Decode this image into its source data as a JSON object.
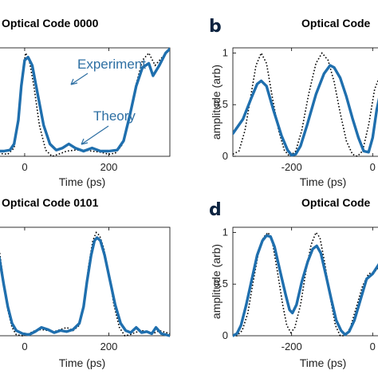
{
  "panel_titles": {
    "a": "Optical Code 0000",
    "b": "Optical Code",
    "c": "Optical Code 0101",
    "d": "Optical Code"
  },
  "panel_letters": {
    "b": "b",
    "d": "d"
  },
  "annotations": {
    "experiment": "Experiment",
    "theory": "Theory"
  },
  "chart_data": [
    {
      "type": "line",
      "title": "Optical Code 0000",
      "xlabel": "Time (ps)",
      "ylabel": "",
      "xlim": [
        -70,
        345
      ],
      "ylim": [
        0,
        1.05
      ],
      "xticks": [
        0,
        200
      ],
      "xtick_labels": [
        "0",
        "200"
      ],
      "yticks": [],
      "series": [
        {
          "name": "Experiment",
          "style": "solid",
          "color": "#1f6fae",
          "points": [
            [
              -70,
              0.05
            ],
            [
              -50,
              0.05
            ],
            [
              -35,
              0.06
            ],
            [
              -25,
              0.12
            ],
            [
              -15,
              0.35
            ],
            [
              -8,
              0.68
            ],
            [
              0,
              0.93
            ],
            [
              8,
              0.96
            ],
            [
              18,
              0.88
            ],
            [
              30,
              0.62
            ],
            [
              45,
              0.3
            ],
            [
              60,
              0.12
            ],
            [
              75,
              0.06
            ],
            [
              90,
              0.08
            ],
            [
              105,
              0.12
            ],
            [
              120,
              0.08
            ],
            [
              140,
              0.05
            ],
            [
              160,
              0.08
            ],
            [
              180,
              0.05
            ],
            [
              200,
              0.05
            ],
            [
              220,
              0.06
            ],
            [
              235,
              0.15
            ],
            [
              250,
              0.4
            ],
            [
              265,
              0.68
            ],
            [
              280,
              0.86
            ],
            [
              295,
              0.9
            ],
            [
              305,
              0.78
            ],
            [
              320,
              0.88
            ],
            [
              335,
              1.0
            ],
            [
              345,
              1.04
            ]
          ]
        },
        {
          "name": "Theory",
          "style": "dotted",
          "color": "#000000",
          "points": [
            [
              -70,
              0.03
            ],
            [
              -40,
              0.02
            ],
            [
              -25,
              0.08
            ],
            [
              -15,
              0.35
            ],
            [
              -5,
              0.8
            ],
            [
              2,
              1.0
            ],
            [
              10,
              0.95
            ],
            [
              22,
              0.68
            ],
            [
              35,
              0.3
            ],
            [
              50,
              0.06
            ],
            [
              65,
              0.0
            ],
            [
              80,
              0.02
            ],
            [
              100,
              0.05
            ],
            [
              120,
              0.06
            ],
            [
              140,
              0.06
            ],
            [
              160,
              0.05
            ],
            [
              180,
              0.04
            ],
            [
              200,
              0.02
            ],
            [
              215,
              0.03
            ],
            [
              230,
              0.1
            ],
            [
              248,
              0.35
            ],
            [
              265,
              0.7
            ],
            [
              280,
              0.93
            ],
            [
              295,
              1.0
            ],
            [
              310,
              0.88
            ],
            [
              325,
              0.95
            ],
            [
              340,
              1.02
            ]
          ]
        }
      ]
    },
    {
      "type": "line",
      "title": "Optical Code",
      "xlabel": "Time (ps)",
      "ylabel": "amplitude (arb)",
      "xlim": [
        -345,
        25
      ],
      "ylim": [
        0,
        1.05
      ],
      "xticks": [
        -200,
        0
      ],
      "xtick_labels": [
        "-200",
        "0"
      ],
      "yticks": [
        0,
        0.5,
        1
      ],
      "ytick_labels": [
        "0",
        "0.5",
        "1"
      ],
      "series": [
        {
          "name": "Experiment",
          "style": "solid",
          "color": "#1f6fae",
          "points": [
            [
              -345,
              0.22
            ],
            [
              -320,
              0.36
            ],
            [
              -300,
              0.56
            ],
            [
              -285,
              0.7
            ],
            [
              -275,
              0.73
            ],
            [
              -262,
              0.68
            ],
            [
              -245,
              0.45
            ],
            [
              -225,
              0.2
            ],
            [
              -210,
              0.06
            ],
            [
              -200,
              0.01
            ],
            [
              -190,
              0.02
            ],
            [
              -178,
              0.1
            ],
            [
              -162,
              0.3
            ],
            [
              -140,
              0.6
            ],
            [
              -120,
              0.8
            ],
            [
              -105,
              0.88
            ],
            [
              -95,
              0.86
            ],
            [
              -80,
              0.76
            ],
            [
              -65,
              0.58
            ],
            [
              -50,
              0.37
            ],
            [
              -35,
              0.18
            ],
            [
              -22,
              0.05
            ],
            [
              -10,
              0.04
            ],
            [
              0,
              0.18
            ],
            [
              10,
              0.45
            ],
            [
              25,
              0.72
            ]
          ]
        },
        {
          "name": "Theory",
          "style": "dotted",
          "color": "#000000",
          "points": [
            [
              -345,
              0.02
            ],
            [
              -330,
              0.05
            ],
            [
              -315,
              0.25
            ],
            [
              -300,
              0.6
            ],
            [
              -288,
              0.88
            ],
            [
              -275,
              1.0
            ],
            [
              -262,
              0.9
            ],
            [
              -248,
              0.58
            ],
            [
              -232,
              0.25
            ],
            [
              -218,
              0.06
            ],
            [
              -205,
              0.0
            ],
            [
              -190,
              0.05
            ],
            [
              -175,
              0.25
            ],
            [
              -158,
              0.6
            ],
            [
              -140,
              0.9
            ],
            [
              -125,
              1.0
            ],
            [
              -110,
              0.93
            ],
            [
              -95,
              0.72
            ],
            [
              -80,
              0.42
            ],
            [
              -65,
              0.15
            ],
            [
              -50,
              0.02
            ],
            [
              -38,
              0.0
            ],
            [
              -25,
              0.05
            ],
            [
              -10,
              0.3
            ],
            [
              5,
              0.65
            ],
            [
              25,
              0.85
            ]
          ]
        }
      ]
    },
    {
      "type": "line",
      "title": "Optical Code 0101",
      "xlabel": "Time (ps)",
      "ylabel": "",
      "xlim": [
        -70,
        345
      ],
      "ylim": [
        0,
        1.05
      ],
      "xticks": [
        0,
        200
      ],
      "xtick_labels": [
        "0",
        "200"
      ],
      "yticks": [],
      "series": [
        {
          "name": "Experiment",
          "style": "solid",
          "color": "#1f6fae",
          "points": [
            [
              -70,
              0.88
            ],
            [
              -60,
              0.75
            ],
            [
              -50,
              0.5
            ],
            [
              -40,
              0.28
            ],
            [
              -30,
              0.12
            ],
            [
              -20,
              0.05
            ],
            [
              -5,
              0.02
            ],
            [
              10,
              0.01
            ],
            [
              25,
              0.04
            ],
            [
              40,
              0.08
            ],
            [
              55,
              0.06
            ],
            [
              70,
              0.03
            ],
            [
              85,
              0.05
            ],
            [
              100,
              0.04
            ],
            [
              115,
              0.06
            ],
            [
              130,
              0.12
            ],
            [
              140,
              0.28
            ],
            [
              148,
              0.52
            ],
            [
              158,
              0.78
            ],
            [
              166,
              0.92
            ],
            [
              172,
              0.95
            ],
            [
              180,
              0.92
            ],
            [
              190,
              0.78
            ],
            [
              202,
              0.55
            ],
            [
              215,
              0.3
            ],
            [
              228,
              0.12
            ],
            [
              240,
              0.05
            ],
            [
              252,
              0.03
            ],
            [
              265,
              0.08
            ],
            [
              278,
              0.03
            ],
            [
              290,
              0.04
            ],
            [
              302,
              0.02
            ],
            [
              312,
              0.08
            ],
            [
              325,
              0.02
            ],
            [
              345,
              0.0
            ]
          ]
        },
        {
          "name": "Theory",
          "style": "dotted",
          "color": "#000000",
          "points": [
            [
              -70,
              0.95
            ],
            [
              -60,
              0.82
            ],
            [
              -50,
              0.52
            ],
            [
              -40,
              0.25
            ],
            [
              -30,
              0.08
            ],
            [
              -20,
              0.01
            ],
            [
              -5,
              0.0
            ],
            [
              10,
              0.02
            ],
            [
              25,
              0.05
            ],
            [
              40,
              0.06
            ],
            [
              55,
              0.05
            ],
            [
              70,
              0.04
            ],
            [
              85,
              0.06
            ],
            [
              100,
              0.08
            ],
            [
              115,
              0.05
            ],
            [
              130,
              0.1
            ],
            [
              142,
              0.35
            ],
            [
              152,
              0.68
            ],
            [
              162,
              0.92
            ],
            [
              170,
              1.0
            ],
            [
              178,
              0.97
            ],
            [
              188,
              0.85
            ],
            [
              200,
              0.6
            ],
            [
              212,
              0.3
            ],
            [
              225,
              0.08
            ],
            [
              238,
              0.0
            ],
            [
              250,
              0.01
            ],
            [
              262,
              0.03
            ],
            [
              278,
              0.05
            ],
            [
              292,
              0.04
            ],
            [
              305,
              0.02
            ],
            [
              320,
              0.05
            ],
            [
              345,
              0.02
            ]
          ]
        }
      ]
    },
    {
      "type": "line",
      "title": "Optical Code",
      "xlabel": "Time (ps)",
      "ylabel": "amplitude (arb)",
      "xlim": [
        -345,
        25
      ],
      "ylim": [
        0,
        1.05
      ],
      "xticks": [
        -200,
        0
      ],
      "xtick_labels": [
        "-200",
        "0"
      ],
      "yticks": [
        0,
        0.5,
        1
      ],
      "ytick_labels": [
        "0",
        "0.5",
        "1"
      ],
      "series": [
        {
          "name": "Experiment",
          "style": "solid",
          "color": "#1f6fae",
          "points": [
            [
              -345,
              0.0
            ],
            [
              -335,
              0.02
            ],
            [
              -325,
              0.1
            ],
            [
              -312,
              0.3
            ],
            [
              -298,
              0.55
            ],
            [
              -285,
              0.78
            ],
            [
              -272,
              0.92
            ],
            [
              -262,
              0.97
            ],
            [
              -252,
              0.96
            ],
            [
              -242,
              0.86
            ],
            [
              -228,
              0.62
            ],
            [
              -215,
              0.4
            ],
            [
              -205,
              0.25
            ],
            [
              -198,
              0.22
            ],
            [
              -188,
              0.3
            ],
            [
              -175,
              0.52
            ],
            [
              -160,
              0.72
            ],
            [
              -148,
              0.84
            ],
            [
              -138,
              0.87
            ],
            [
              -128,
              0.8
            ],
            [
              -115,
              0.58
            ],
            [
              -102,
              0.35
            ],
            [
              -90,
              0.15
            ],
            [
              -78,
              0.05
            ],
            [
              -68,
              0.01
            ],
            [
              -58,
              0.04
            ],
            [
              -45,
              0.15
            ],
            [
              -30,
              0.35
            ],
            [
              -15,
              0.55
            ],
            [
              0,
              0.6
            ],
            [
              25,
              0.75
            ]
          ]
        },
        {
          "name": "Theory",
          "style": "dotted",
          "color": "#000000",
          "points": [
            [
              -345,
              0.0
            ],
            [
              -335,
              0.0
            ],
            [
              -322,
              0.05
            ],
            [
              -308,
              0.22
            ],
            [
              -295,
              0.52
            ],
            [
              -282,
              0.8
            ],
            [
              -270,
              0.95
            ],
            [
              -258,
              1.0
            ],
            [
              -248,
              0.92
            ],
            [
              -235,
              0.62
            ],
            [
              -222,
              0.3
            ],
            [
              -212,
              0.1
            ],
            [
              -202,
              0.03
            ],
            [
              -192,
              0.08
            ],
            [
              -178,
              0.3
            ],
            [
              -165,
              0.62
            ],
            [
              -152,
              0.88
            ],
            [
              -140,
              1.0
            ],
            [
              -130,
              0.95
            ],
            [
              -118,
              0.7
            ],
            [
              -105,
              0.38
            ],
            [
              -92,
              0.1
            ],
            [
              -80,
              0.0
            ],
            [
              -68,
              0.0
            ],
            [
              -55,
              0.08
            ],
            [
              -40,
              0.28
            ],
            [
              -25,
              0.48
            ],
            [
              -10,
              0.6
            ],
            [
              5,
              0.62
            ],
            [
              25,
              0.7
            ]
          ]
        }
      ]
    }
  ]
}
